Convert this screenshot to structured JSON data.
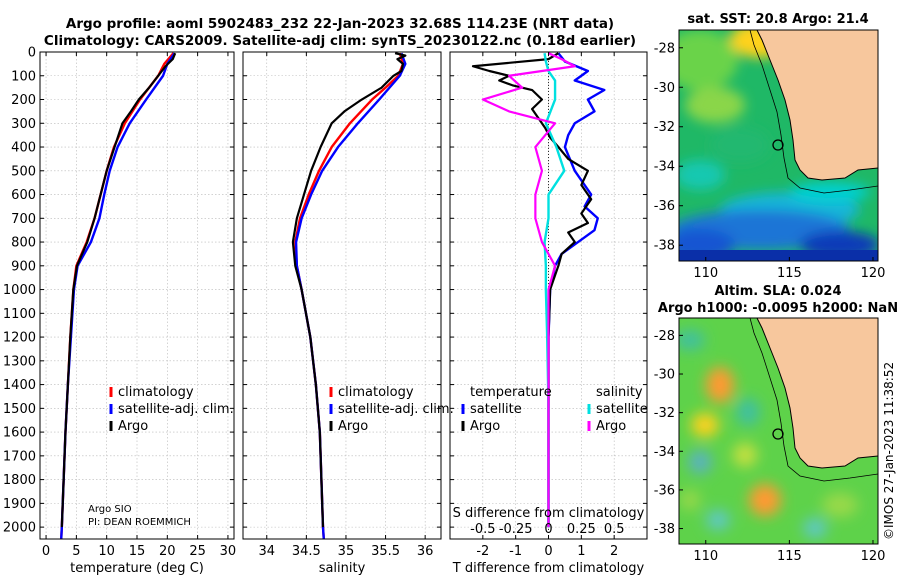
{
  "header": {
    "line1": "Argo profile: aoml 5902483_232 22-Jan-2023 32.68S 114.23E (NRT data)",
    "line2": "Climatology: CARS2009. Satellite-adj clim: synTS_20230122.nc (0.18d earlier)"
  },
  "colors": {
    "argo": "#000000",
    "climatology": "#ff0000",
    "satellite_adj": "#0000ff",
    "satellite_salinity": "#00e0e0",
    "argo_salinity": "#ff00ff",
    "land": "#f7c79d",
    "grid": "#b8b8b8"
  },
  "depth_axis": {
    "range": [
      0,
      2050
    ],
    "ticks": [
      0,
      100,
      200,
      300,
      400,
      500,
      600,
      700,
      800,
      900,
      1000,
      1100,
      1200,
      1300,
      1400,
      1500,
      1600,
      1700,
      1800,
      1900,
      2000
    ]
  },
  "profile_legend": {
    "climatology": "climatology",
    "satellite": "satellite-adj. clim.",
    "argo": "Argo"
  },
  "diff_legend": {
    "temp_title": "temperature",
    "sal_title": "salinity",
    "satellite": "satellite",
    "argo": "Argo"
  },
  "credits": {
    "line1": "Argo SIO",
    "line2": "PI: DEAN ROEMMICH"
  },
  "maps": {
    "sst_title": "sat. SST: 20.8 Argo: 21.4",
    "sla_title1": "Altim. SLA: 0.024",
    "sla_title2": "Argo h1000: -0.0095 h2000: NaN",
    "watermark": "©IMOS 27-Jan-2023 11:38:52",
    "lon_ticks": [
      "110",
      "115",
      "120"
    ],
    "lat_ticks": [
      "-28",
      "-30",
      "-32",
      "-34",
      "-36",
      "-38"
    ],
    "profile_location": {
      "lon": 114.23,
      "lat": -32.68
    }
  },
  "chart_data": [
    {
      "type": "line",
      "title": "",
      "xlabel": "temperature (deg C)",
      "ylabel": "",
      "xlim": [
        -1,
        31
      ],
      "ylim": [
        2050,
        0
      ],
      "xticks": [
        0,
        5,
        10,
        15,
        20,
        25,
        30
      ],
      "x_tick_labels": [
        "0",
        "5",
        "10",
        "15",
        "20",
        "25",
        "30"
      ],
      "series": [
        {
          "name": "climatology",
          "depth": [
            5,
            50,
            100,
            200,
            300,
            400,
            500,
            600,
            700,
            800,
            900,
            1000,
            1200,
            1400,
            1600,
            1800,
            2000,
            2050
          ],
          "values": [
            21,
            19.5,
            18.5,
            15.5,
            13,
            11.2,
            10,
            9,
            8,
            6.7,
            5,
            4.5,
            4,
            3.6,
            3.2,
            2.9,
            2.6,
            2.5
          ]
        },
        {
          "name": "satellite-adj. clim.",
          "depth": [
            5,
            50,
            100,
            200,
            300,
            400,
            500,
            600,
            700,
            800,
            900,
            1000,
            1200,
            1400,
            1600,
            1800,
            2000,
            2050
          ],
          "values": [
            21.2,
            20,
            19.3,
            16.5,
            13.8,
            11.8,
            10.5,
            9.6,
            8.8,
            7.4,
            5.2,
            4.6,
            4.1,
            3.6,
            3.2,
            2.9,
            2.6,
            2.5
          ]
        },
        {
          "name": "Argo",
          "depth": [
            5,
            30,
            60,
            100,
            150,
            200,
            250,
            300,
            400,
            500,
            600,
            700,
            800,
            900,
            1000,
            1200,
            1400,
            1600,
            1800,
            2000
          ],
          "values": [
            21.3,
            20.9,
            19.7,
            18.5,
            17,
            15.3,
            14,
            12.6,
            11.3,
            10,
            9,
            8,
            6.8,
            5.1,
            4.5,
            4,
            3.6,
            3.2,
            2.9,
            2.6
          ]
        }
      ]
    },
    {
      "type": "line",
      "title": "",
      "xlabel": "salinity",
      "ylabel": "",
      "xlim": [
        33.7,
        36.2
      ],
      "ylim": [
        2050,
        0
      ],
      "xticks": [
        34,
        34.5,
        35,
        35.5,
        36
      ],
      "x_tick_labels": [
        "34",
        "34.5",
        "35",
        "35.5",
        "36"
      ],
      "series": [
        {
          "name": "climatology",
          "depth": [
            5,
            50,
            100,
            150,
            200,
            300,
            400,
            500,
            600,
            700,
            800,
            900,
            1000,
            1200,
            1400,
            1600,
            1800,
            2000,
            2050
          ],
          "values": [
            35.68,
            35.72,
            35.66,
            35.5,
            35.33,
            35.05,
            34.82,
            34.66,
            34.53,
            34.42,
            34.36,
            34.38,
            34.44,
            34.55,
            34.62,
            34.67,
            34.69,
            34.71,
            34.72
          ]
        },
        {
          "name": "satellite-adj. clim.",
          "depth": [
            5,
            50,
            100,
            150,
            200,
            300,
            400,
            500,
            600,
            700,
            800,
            900,
            1000,
            1200,
            1400,
            1600,
            1800,
            2000,
            2050
          ],
          "values": [
            35.7,
            35.75,
            35.68,
            35.55,
            35.42,
            35.15,
            34.9,
            34.7,
            34.56,
            34.44,
            34.37,
            34.38,
            34.44,
            34.55,
            34.62,
            34.67,
            34.69,
            34.71,
            34.72
          ]
        },
        {
          "name": "Argo",
          "depth": [
            5,
            15,
            30,
            50,
            80,
            100,
            150,
            200,
            250,
            300,
            350,
            400,
            500,
            600,
            700,
            800,
            900,
            1000,
            1200,
            1400,
            1600,
            1800,
            2000
          ],
          "values": [
            35.62,
            35.75,
            35.65,
            35.72,
            35.7,
            35.6,
            35.45,
            35.2,
            34.98,
            34.82,
            34.75,
            34.68,
            34.56,
            34.47,
            34.38,
            34.33,
            34.36,
            34.44,
            34.55,
            34.62,
            34.67,
            34.69,
            34.71
          ]
        }
      ]
    },
    {
      "type": "line",
      "title": "",
      "xlabel": "T difference from climatology",
      "x2label": "S difference from climatology",
      "ylabel": "",
      "xlim": [
        -3,
        3
      ],
      "ylim": [
        2050,
        0
      ],
      "xticks": [
        -2,
        -1,
        0,
        1,
        2
      ],
      "x_tick_labels": [
        "-2",
        "-1",
        "0",
        "1",
        "2"
      ],
      "x2ticks": [
        -2,
        -1,
        0,
        1,
        2
      ],
      "x2_tick_labels": [
        "-0.5",
        "-0.25",
        "0",
        "0.25",
        "0.5"
      ],
      "series": [
        {
          "name": "temperature satellite",
          "quantity": "T",
          "depth": [
            5,
            40,
            80,
            120,
            160,
            200,
            250,
            300,
            350,
            400,
            500,
            600,
            650,
            700,
            750,
            800,
            850,
            900,
            1000,
            1200,
            1500,
            2000
          ],
          "values": [
            0.3,
            0.5,
            1.2,
            0.8,
            1.7,
            1.2,
            1.4,
            0.8,
            0.6,
            0.5,
            0.8,
            1.3,
            1.1,
            1.5,
            1.4,
            0.9,
            0.4,
            0.2,
            0.05,
            0,
            0,
            0
          ]
        },
        {
          "name": "temperature Argo",
          "quantity": "T",
          "depth": [
            5,
            30,
            60,
            80,
            100,
            120,
            140,
            160,
            200,
            240,
            280,
            320,
            360,
            400,
            450,
            500,
            560,
            620,
            680,
            720,
            760,
            800,
            850,
            900,
            1000,
            1200,
            1500,
            2000
          ],
          "values": [
            0.3,
            0,
            -2.3,
            -1.8,
            -1.2,
            -1.5,
            -1.1,
            -0.5,
            -0.2,
            -0.5,
            -0.3,
            -0.1,
            0.05,
            0.3,
            0.6,
            1.2,
            1.0,
            1.3,
            1.0,
            1.2,
            0.6,
            0.8,
            0.4,
            0.3,
            0.05,
            0,
            0,
            0
          ]
        },
        {
          "name": "salinity satellite",
          "quantity": "S",
          "depth": [
            5,
            40,
            80,
            120,
            200,
            300,
            400,
            500,
            600,
            700,
            800,
            900,
            1000,
            1200,
            1500,
            1800,
            2000
          ],
          "values": [
            -0.03,
            -0.02,
            0,
            0.05,
            0.05,
            -0.02,
            0.06,
            0.12,
            0,
            0,
            -0.03,
            -0.02,
            -0.02,
            -0.01,
            0,
            0,
            0
          ]
        },
        {
          "name": "salinity Argo",
          "quantity": "S",
          "depth": [
            5,
            30,
            60,
            100,
            150,
            200,
            250,
            300,
            400,
            500,
            600,
            700,
            800,
            900,
            1000,
            1200,
            1500,
            1800,
            2000
          ],
          "values": [
            0,
            0.1,
            0.2,
            -0.3,
            -0.2,
            -0.5,
            -0.3,
            0.05,
            -0.1,
            -0.05,
            -0.1,
            -0.1,
            -0.05,
            0.05,
            0,
            0,
            0,
            0,
            0
          ]
        }
      ]
    },
    {
      "type": "heatmap",
      "title": "sat. SST: 20.8 Argo: 21.4",
      "xlabel": "",
      "ylabel": "",
      "xlim": [
        108.4,
        120.3
      ],
      "ylim": [
        -38.8,
        -27.1
      ],
      "xticks": [
        110,
        115,
        120
      ],
      "yticks": [
        -28,
        -30,
        -32,
        -34,
        -36,
        -38
      ],
      "marker": {
        "lon": 114.23,
        "lat": -32.68
      }
    },
    {
      "type": "heatmap",
      "title": "Altim. SLA: 0.024 / Argo h1000: -0.0095 h2000: NaN",
      "xlabel": "",
      "ylabel": "",
      "xlim": [
        108.4,
        120.3
      ],
      "ylim": [
        -38.8,
        -27.1
      ],
      "xticks": [
        110,
        115,
        120
      ],
      "yticks": [
        -28,
        -30,
        -32,
        -34,
        -36,
        -38
      ],
      "marker": {
        "lon": 114.23,
        "lat": -32.68
      }
    }
  ]
}
